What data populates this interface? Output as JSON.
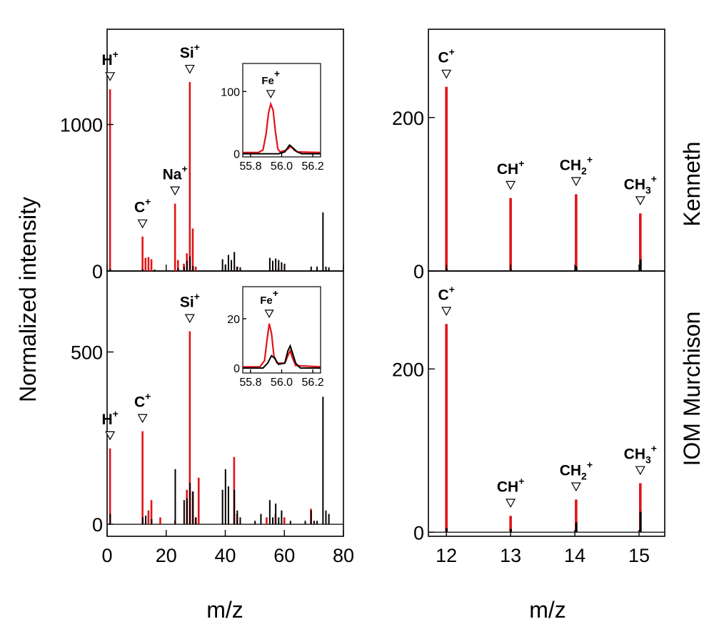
{
  "chart_data": {
    "type": "line",
    "x_label": "m/z",
    "y_label": "Normalized intensity",
    "series_colors": {
      "red": "#e0141a",
      "black": "#000000"
    },
    "left_panels": {
      "x_range": [
        0,
        80
      ],
      "x_ticks": [
        "0",
        "20",
        "40",
        "60",
        "80"
      ],
      "top": {
        "sample": "Kenneth",
        "y_range": [
          0,
          1650
        ],
        "y_ticks": [
          {
            "v": 0,
            "t": "0"
          },
          {
            "v": 1000,
            "t": "1000"
          }
        ],
        "red_peaks": [
          [
            1,
            1240
          ],
          [
            12,
            235
          ],
          [
            13,
            90
          ],
          [
            14,
            95
          ],
          [
            15,
            80
          ],
          [
            23,
            460
          ],
          [
            24,
            75
          ],
          [
            26,
            50
          ],
          [
            27,
            120
          ],
          [
            28,
            1290
          ],
          [
            29,
            290
          ],
          [
            30,
            30
          ],
          [
            44,
            30
          ],
          [
            58,
            20
          ]
        ],
        "black_peaks": [
          [
            1,
            15
          ],
          [
            12,
            12
          ],
          [
            16,
            10
          ],
          [
            24,
            20
          ],
          [
            26,
            30
          ],
          [
            27,
            70
          ],
          [
            28,
            100
          ],
          [
            29,
            35
          ],
          [
            39,
            80
          ],
          [
            40,
            45
          ],
          [
            41,
            110
          ],
          [
            42,
            75
          ],
          [
            43,
            130
          ],
          [
            44,
            30
          ],
          [
            45,
            25
          ],
          [
            55,
            90
          ],
          [
            56,
            70
          ],
          [
            57,
            85
          ],
          [
            58,
            75
          ],
          [
            59,
            60
          ],
          [
            60,
            50
          ],
          [
            69,
            30
          ],
          [
            71,
            30
          ],
          [
            73,
            400
          ],
          [
            74,
            30
          ],
          [
            75,
            25
          ]
        ],
        "labels": [
          {
            "x": 1,
            "y": 1240,
            "text": "H",
            "sup": "+",
            "sub": ""
          },
          {
            "x": 12,
            "y": 235,
            "text": "C",
            "sup": "+",
            "sub": ""
          },
          {
            "x": 23,
            "y": 460,
            "text": "Na",
            "sup": "+",
            "sub": ""
          },
          {
            "x": 28,
            "y": 1290,
            "text": "Si",
            "sup": "+",
            "sub": ""
          }
        ],
        "inset": {
          "x_range": [
            55.75,
            56.25
          ],
          "y_range": [
            -5,
            145
          ],
          "x_ticks": [
            "55.8",
            "56.0",
            "56.2"
          ],
          "y_ticks": [
            {
              "v": 0,
              "t": "0"
            },
            {
              "v": 100,
              "t": "100"
            }
          ],
          "label": {
            "x": 55.93,
            "y": 80,
            "text": "Fe",
            "sup": "+",
            "sub": ""
          },
          "red_curve": [
            [
              55.75,
              2
            ],
            [
              55.85,
              2
            ],
            [
              55.88,
              6
            ],
            [
              55.9,
              32
            ],
            [
              55.915,
              65
            ],
            [
              55.93,
              80
            ],
            [
              55.945,
              70
            ],
            [
              55.96,
              35
            ],
            [
              55.975,
              8
            ],
            [
              55.99,
              3
            ],
            [
              56.03,
              6
            ],
            [
              56.06,
              12
            ],
            [
              56.08,
              6
            ],
            [
              56.1,
              3
            ],
            [
              56.25,
              2
            ]
          ],
          "black_curve": [
            [
              55.75,
              0
            ],
            [
              55.98,
              0
            ],
            [
              56.02,
              3
            ],
            [
              56.05,
              14
            ],
            [
              56.07,
              10
            ],
            [
              56.1,
              3
            ],
            [
              56.13,
              0
            ],
            [
              56.25,
              0
            ]
          ]
        }
      },
      "bottom": {
        "sample": "IOM Murchison",
        "y_range": [
          -35,
          735
        ],
        "y_ticks": [
          {
            "v": 0,
            "t": "0"
          },
          {
            "v": 500,
            "t": "500"
          }
        ],
        "red_peaks": [
          [
            1,
            220
          ],
          [
            12,
            270
          ],
          [
            14,
            40
          ],
          [
            15,
            70
          ],
          [
            18,
            20
          ],
          [
            23,
            10
          ],
          [
            27,
            100
          ],
          [
            28,
            560
          ],
          [
            29,
            95
          ],
          [
            30,
            20
          ],
          [
            31,
            135
          ],
          [
            43,
            195
          ],
          [
            44,
            30
          ],
          [
            54,
            20
          ],
          [
            57,
            30
          ],
          [
            60,
            20
          ],
          [
            69,
            45
          ]
        ],
        "black_peaks": [
          [
            1,
            30
          ],
          [
            12,
            20
          ],
          [
            13,
            25
          ],
          [
            15,
            15
          ],
          [
            23,
            160
          ],
          [
            26,
            70
          ],
          [
            27,
            75
          ],
          [
            28,
            120
          ],
          [
            29,
            95
          ],
          [
            30,
            20
          ],
          [
            39,
            100
          ],
          [
            40,
            160
          ],
          [
            41,
            110
          ],
          [
            43,
            100
          ],
          [
            44,
            40
          ],
          [
            45,
            20
          ],
          [
            50,
            10
          ],
          [
            52,
            30
          ],
          [
            55,
            70
          ],
          [
            56,
            20
          ],
          [
            57,
            60
          ],
          [
            58,
            20
          ],
          [
            59,
            40
          ],
          [
            62,
            10
          ],
          [
            67,
            10
          ],
          [
            69,
            40
          ],
          [
            70,
            10
          ],
          [
            71,
            10
          ],
          [
            73,
            370
          ],
          [
            74,
            40
          ],
          [
            75,
            30
          ]
        ],
        "labels": [
          {
            "x": 1,
            "y": 220,
            "text": "H",
            "sup": "+",
            "sub": ""
          },
          {
            "x": 12,
            "y": 270,
            "text": "C",
            "sup": "+",
            "sub": ""
          },
          {
            "x": 28,
            "y": 560,
            "text": "Si",
            "sup": "+",
            "sub": ""
          }
        ],
        "inset": {
          "x_range": [
            55.75,
            56.25
          ],
          "y_range": [
            -2,
            33
          ],
          "x_ticks": [
            "55.8",
            "56.0",
            "56.2"
          ],
          "y_ticks": [
            {
              "v": 0,
              "t": "0"
            },
            {
              "v": 20,
              "t": "20"
            }
          ],
          "label": {
            "x": 55.92,
            "y": 18,
            "text": "Fe",
            "sup": "+",
            "sub": ""
          },
          "red_curve": [
            [
              55.75,
              0.5
            ],
            [
              55.86,
              0.5
            ],
            [
              55.89,
              3
            ],
            [
              55.905,
              11
            ],
            [
              55.92,
              18
            ],
            [
              55.935,
              14
            ],
            [
              55.95,
              5
            ],
            [
              55.97,
              2
            ],
            [
              56.02,
              2
            ],
            [
              56.04,
              5
            ],
            [
              56.055,
              7
            ],
            [
              56.07,
              4
            ],
            [
              56.09,
              1
            ],
            [
              56.25,
              0.5
            ]
          ],
          "black_curve": [
            [
              55.75,
              0
            ],
            [
              55.88,
              0
            ],
            [
              55.91,
              2
            ],
            [
              55.935,
              5
            ],
            [
              55.955,
              4
            ],
            [
              55.98,
              1.5
            ],
            [
              56.02,
              2
            ],
            [
              56.04,
              7
            ],
            [
              56.055,
              9
            ],
            [
              56.07,
              6
            ],
            [
              56.09,
              2
            ],
            [
              56.12,
              0
            ],
            [
              56.25,
              0
            ]
          ]
        }
      }
    },
    "right_panels": {
      "x_range": [
        11.72,
        15.4
      ],
      "x_ticks": [
        "12",
        "13",
        "14",
        "15"
      ],
      "top": {
        "sample": "Kenneth",
        "y_range": [
          0,
          315
        ],
        "y_ticks": [
          {
            "v": 0,
            "t": "0"
          },
          {
            "v": 200,
            "t": "200"
          }
        ],
        "red_peaks": [
          [
            12.0,
            240
          ],
          [
            13.0,
            95
          ],
          [
            14.02,
            100
          ],
          [
            15.02,
            75
          ]
        ],
        "black_peaks": [
          [
            12.0,
            3
          ],
          [
            13.0,
            2
          ],
          [
            14.02,
            6
          ],
          [
            15.02,
            15
          ]
        ],
        "labels": [
          {
            "x": 12.0,
            "y": 240,
            "text": "C",
            "sup": "+",
            "sub": ""
          },
          {
            "x": 13.0,
            "y": 95,
            "text": "CH",
            "sup": "+",
            "sub": ""
          },
          {
            "x": 14.02,
            "y": 100,
            "text": "CH",
            "sup": "+",
            "sub": "2"
          },
          {
            "x": 15.02,
            "y": 75,
            "text": "CH",
            "sup": "+",
            "sub": "3"
          }
        ]
      },
      "bottom": {
        "sample": "IOM Murchison",
        "y_range": [
          -5,
          320
        ],
        "y_ticks": [
          {
            "v": 0,
            "t": "0"
          },
          {
            "v": 200,
            "t": "200"
          }
        ],
        "red_peaks": [
          [
            12.0,
            255
          ],
          [
            13.0,
            20
          ],
          [
            14.02,
            40
          ],
          [
            15.02,
            60
          ]
        ],
        "black_peaks": [
          [
            12.0,
            5
          ],
          [
            13.0,
            4
          ],
          [
            14.02,
            12
          ],
          [
            15.02,
            25
          ]
        ],
        "labels": [
          {
            "x": 12.0,
            "y": 255,
            "text": "C",
            "sup": "+",
            "sub": ""
          },
          {
            "x": 13.0,
            "y": 20,
            "text": "CH",
            "sup": "+",
            "sub": ""
          },
          {
            "x": 14.02,
            "y": 40,
            "text": "CH",
            "sup": "+",
            "sub": "2"
          },
          {
            "x": 15.02,
            "y": 60,
            "text": "CH",
            "sup": "+",
            "sub": "3"
          }
        ]
      }
    }
  }
}
